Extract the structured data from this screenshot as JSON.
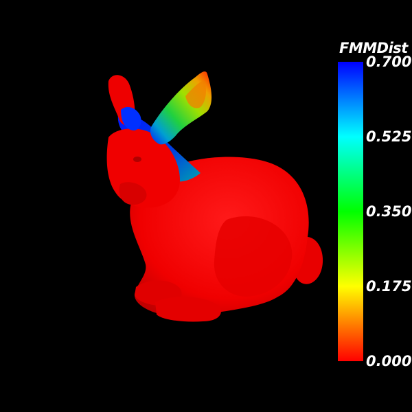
{
  "legend": {
    "title": "FMMDist",
    "ticks": [
      "0.700",
      "0.525",
      "0.350",
      "0.175",
      "0.000"
    ],
    "colormap": [
      "#ff0000",
      "#ffff00",
      "#00ff00",
      "#00ffff",
      "#0000ff"
    ]
  },
  "scene": {
    "background": "#000000",
    "subject": "bunny-mesh",
    "body_color": "#ff0000"
  }
}
